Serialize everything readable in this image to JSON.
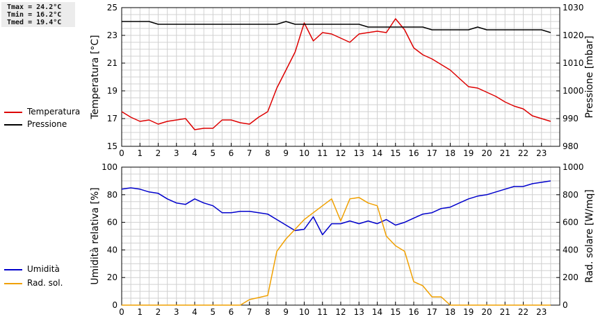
{
  "stats": {
    "tmax": "Tmax = 24.2°C",
    "tmin": "Tmin = 16.2°C",
    "tmed": "Tmed = 19.4°C"
  },
  "colors": {
    "temperature": "#dd0000",
    "pressure": "#000000",
    "humidity": "#0000cc",
    "radiation": "#f0a000",
    "grid": "#d0d0d0",
    "axis": "#000000"
  },
  "chart_data": [
    {
      "type": "line",
      "xlim": [
        0,
        24
      ],
      "x_ticks": [
        "0",
        "1",
        "2",
        "3",
        "4",
        "5",
        "6",
        "7",
        "8",
        "9",
        "10",
        "11",
        "12",
        "13",
        "14",
        "15",
        "16",
        "17",
        "18",
        "19",
        "20",
        "21",
        "22",
        "23"
      ],
      "ylabel": "Temperatura [°C]",
      "ylim": [
        15,
        25
      ],
      "y_ticks": [
        "15",
        "17",
        "19",
        "21",
        "23",
        "25"
      ],
      "y2label": "Pressione [mbar]",
      "y2lim": [
        980,
        1030
      ],
      "y2_ticks": [
        "980",
        "990",
        "1000",
        "1010",
        "1020",
        "1030"
      ],
      "grid": true,
      "legend_position": "left",
      "series": [
        {
          "name": "Temperatura",
          "axis": "left",
          "color": "#dd0000",
          "x": [
            0,
            0.5,
            1,
            1.5,
            2,
            2.5,
            3,
            3.5,
            4,
            4.5,
            5,
            5.5,
            6,
            6.5,
            7,
            7.5,
            8,
            8.5,
            9,
            9.5,
            10,
            10.5,
            11,
            11.5,
            12,
            12.5,
            13,
            13.5,
            14,
            14.5,
            15,
            15.5,
            16,
            16.5,
            17,
            17.5,
            18,
            18.5,
            19,
            19.5,
            20,
            20.5,
            21,
            21.5,
            22,
            22.5,
            23,
            23.5
          ],
          "values": [
            17.5,
            17.1,
            16.8,
            16.9,
            16.6,
            16.8,
            16.9,
            17.0,
            16.2,
            16.3,
            16.3,
            16.9,
            16.9,
            16.7,
            16.6,
            17.1,
            17.5,
            19.2,
            20.5,
            21.8,
            23.9,
            22.6,
            23.2,
            23.1,
            22.8,
            22.5,
            23.1,
            23.2,
            23.3,
            23.2,
            24.2,
            23.4,
            22.1,
            21.6,
            21.3,
            20.9,
            20.5,
            19.9,
            19.3,
            19.2,
            18.9,
            18.6,
            18.2,
            17.9,
            17.7,
            17.2,
            17.0,
            16.8
          ]
        },
        {
          "name": "Pressione",
          "axis": "right",
          "color": "#000000",
          "x": [
            0,
            0.5,
            1,
            1.5,
            2,
            2.5,
            3,
            3.5,
            4,
            4.5,
            5,
            5.5,
            6,
            6.5,
            7,
            7.5,
            8,
            8.5,
            9,
            9.5,
            10,
            10.5,
            11,
            11.5,
            12,
            12.5,
            13,
            13.5,
            14,
            14.5,
            15,
            15.5,
            16,
            16.5,
            17,
            17.5,
            18,
            18.5,
            19,
            19.5,
            20,
            20.5,
            21,
            21.5,
            22,
            22.5,
            23,
            23.5
          ],
          "values": [
            1025,
            1025,
            1025,
            1025,
            1024,
            1024,
            1024,
            1024,
            1024,
            1024,
            1024,
            1024,
            1024,
            1024,
            1024,
            1024,
            1024,
            1024,
            1025,
            1024,
            1024,
            1024,
            1024,
            1024,
            1024,
            1024,
            1024,
            1023,
            1023,
            1023,
            1023,
            1023,
            1023,
            1023,
            1022,
            1022,
            1022,
            1022,
            1022,
            1023,
            1022,
            1022,
            1022,
            1022,
            1022,
            1022,
            1022,
            1021
          ]
        }
      ]
    },
    {
      "type": "line",
      "xlim": [
        0,
        24
      ],
      "x_ticks": [
        "0",
        "1",
        "2",
        "3",
        "4",
        "5",
        "6",
        "7",
        "8",
        "9",
        "10",
        "11",
        "12",
        "13",
        "14",
        "15",
        "16",
        "17",
        "18",
        "19",
        "20",
        "21",
        "22",
        "23"
      ],
      "ylabel": "Umidità relativa [%]",
      "ylim": [
        0,
        100
      ],
      "y_ticks": [
        "0",
        "20",
        "40",
        "60",
        "80",
        "100"
      ],
      "y2label": "Rad. solare [W/mq]",
      "y2lim": [
        0,
        1000
      ],
      "y2_ticks": [
        "0",
        "200",
        "400",
        "600",
        "800",
        "1000"
      ],
      "grid": true,
      "legend_position": "left",
      "series": [
        {
          "name": "Umidità",
          "axis": "left",
          "color": "#0000cc",
          "x": [
            0,
            0.5,
            1,
            1.5,
            2,
            2.5,
            3,
            3.5,
            4,
            4.5,
            5,
            5.5,
            6,
            6.5,
            7,
            7.5,
            8,
            8.5,
            9,
            9.5,
            10,
            10.5,
            11,
            11.5,
            12,
            12.5,
            13,
            13.5,
            14,
            14.5,
            15,
            15.5,
            16,
            16.5,
            17,
            17.5,
            18,
            18.5,
            19,
            19.5,
            20,
            20.5,
            21,
            21.5,
            22,
            22.5,
            23,
            23.5
          ],
          "values": [
            84,
            85,
            84,
            82,
            81,
            77,
            74,
            73,
            77,
            74,
            72,
            67,
            67,
            68,
            68,
            67,
            66,
            62,
            58,
            54,
            55,
            64,
            51,
            59,
            59,
            61,
            59,
            61,
            59,
            62,
            58,
            60,
            63,
            66,
            67,
            70,
            71,
            74,
            77,
            79,
            80,
            82,
            84,
            86,
            86,
            88,
            89,
            90
          ]
        },
        {
          "name": "Rad. sol.",
          "axis": "right",
          "color": "#f0a000",
          "x": [
            0,
            0.5,
            1,
            1.5,
            2,
            2.5,
            3,
            3.5,
            4,
            4.5,
            5,
            5.5,
            6,
            6.5,
            7,
            7.5,
            8,
            8.5,
            9,
            9.5,
            10,
            10.5,
            11,
            11.5,
            12,
            12.5,
            13,
            13.5,
            14,
            14.5,
            15,
            15.5,
            16,
            16.5,
            17,
            17.5,
            18,
            18.5,
            19,
            19.5,
            20,
            20.5,
            21,
            21.5,
            22,
            22.5,
            23,
            23.5
          ],
          "values": [
            0,
            0,
            0,
            0,
            0,
            0,
            0,
            0,
            0,
            0,
            0,
            0,
            0,
            0,
            40,
            55,
            70,
            390,
            480,
            550,
            620,
            670,
            720,
            770,
            610,
            770,
            780,
            740,
            720,
            500,
            430,
            390,
            170,
            140,
            60,
            60,
            0,
            0,
            0,
            0,
            0,
            0,
            0,
            0,
            0,
            0,
            0,
            0
          ]
        }
      ]
    }
  ]
}
